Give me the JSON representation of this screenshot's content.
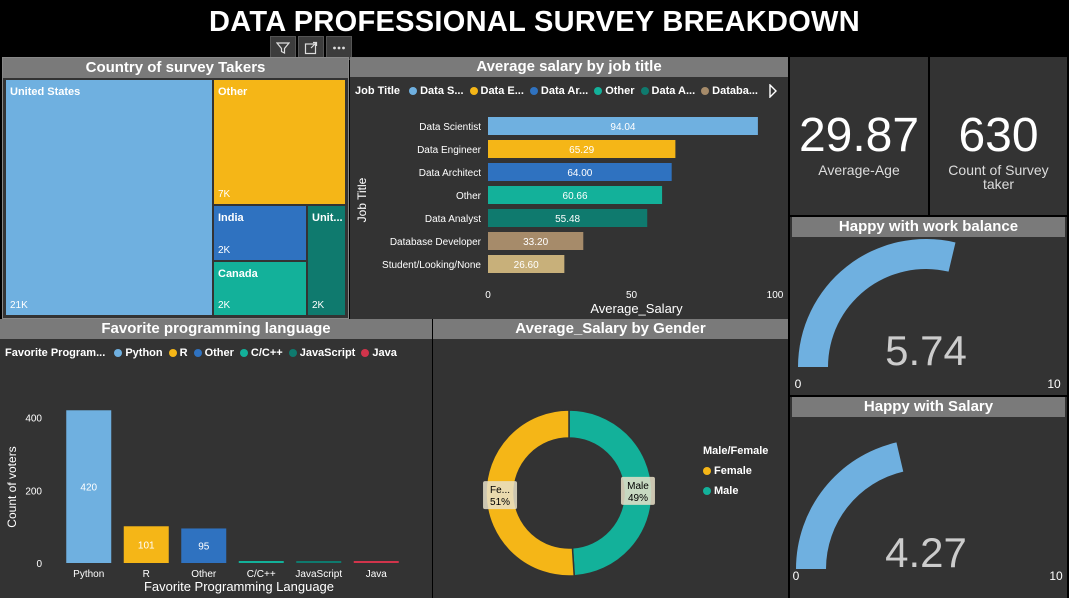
{
  "header": {
    "title": "DATA PROFESSIONAL SURVEY BREAKDOWN"
  },
  "toolbar": {
    "filter_icon": "filter-icon",
    "focus_icon": "focus-mode-icon",
    "more_icon": "more-options-icon"
  },
  "country": {
    "title": "Country of survey Takers",
    "tiles": [
      {
        "name": "United States",
        "value": "21K",
        "color": "#6fb0e0"
      },
      {
        "name": "Other",
        "value": "7K",
        "color": "#f5b617"
      },
      {
        "name": "India",
        "value": "2K",
        "color": "#2f72c0"
      },
      {
        "name": "Canada",
        "value": "2K",
        "color": "#13b19a"
      },
      {
        "name": "Unit...",
        "value": "2K",
        "color": "#0f7a6e"
      }
    ]
  },
  "salary_job": {
    "title": "Average salary by job title",
    "legend_title": "Job Title",
    "legend": [
      {
        "label": "Data S...",
        "color": "#6fb0e0"
      },
      {
        "label": "Data E...",
        "color": "#f5b617"
      },
      {
        "label": "Data Ar...",
        "color": "#2f72c0"
      },
      {
        "label": "Other",
        "color": "#13b19a"
      },
      {
        "label": "Data A...",
        "color": "#0f7a6e"
      },
      {
        "label": "Databa...",
        "color": "#a68b6a"
      }
    ],
    "chart_data": {
      "type": "bar",
      "orientation": "horizontal",
      "categories": [
        "Data Scientist",
        "Data Engineer",
        "Data Architect",
        "Other",
        "Data Analyst",
        "Database Developer",
        "Student/Looking/None"
      ],
      "values": [
        94.04,
        65.29,
        64.0,
        60.66,
        55.48,
        33.2,
        26.6
      ],
      "labels": [
        "94.04",
        "65.29",
        "64.00",
        "60.66",
        "55.48",
        "33.20",
        "26.60"
      ],
      "colors": [
        "#6fb0e0",
        "#f5b617",
        "#2f72c0",
        "#13b19a",
        "#0f7a6e",
        "#a68b6a",
        "#c8b07a"
      ],
      "xlabel": "Average_Salary",
      "ylabel": "Job Title",
      "xlim": [
        0,
        100
      ],
      "xticks": [
        "0",
        "50",
        "100"
      ]
    }
  },
  "kpi": {
    "age_value": "29.87",
    "age_label": "Average-Age",
    "count_value": "630",
    "count_label": "Count of Survey taker"
  },
  "gauge_work": {
    "title": "Happy with work balance",
    "value": "5.74",
    "min": "0",
    "max": "10",
    "fraction": 0.574,
    "color": "#6fb0e0"
  },
  "gauge_salary": {
    "title": "Happy with Salary",
    "value": "4.27",
    "min": "0",
    "max": "10",
    "fraction": 0.427,
    "color": "#6fb0e0"
  },
  "language": {
    "title": "Favorite programming language",
    "legend_title": "Favorite Program...",
    "legend": [
      {
        "label": "Python",
        "color": "#6fb0e0"
      },
      {
        "label": "R",
        "color": "#f5b617"
      },
      {
        "label": "Other",
        "color": "#2f72c0"
      },
      {
        "label": "C/C++",
        "color": "#13b19a"
      },
      {
        "label": "JavaScript",
        "color": "#0f7a6e"
      },
      {
        "label": "Java",
        "color": "#d1344b"
      }
    ],
    "chart_data": {
      "type": "bar",
      "categories": [
        "Python",
        "R",
        "Other",
        "C/C++",
        "JavaScript",
        "Java"
      ],
      "values": [
        420,
        101,
        95,
        0,
        0,
        0
      ],
      "labels": [
        "420",
        "101",
        "95",
        "",
        "",
        ""
      ],
      "colors": [
        "#6fb0e0",
        "#f5b617",
        "#2f72c0",
        "#13b19a",
        "#0f7a6e",
        "#d1344b"
      ],
      "xlabel": "Favorite Programming Language",
      "ylabel": "Count of voters",
      "ylim": [
        0,
        440
      ],
      "yticks": [
        "0",
        "200",
        "400"
      ]
    }
  },
  "gender": {
    "title": "Average_Salary by Gender",
    "legend_title": "Male/Female",
    "legend": [
      {
        "label": "Female",
        "color": "#f5b617"
      },
      {
        "label": "Male",
        "color": "#13b19a"
      }
    ],
    "chart_data": {
      "type": "pie",
      "donut": true,
      "categories": [
        "Female",
        "Male"
      ],
      "values": [
        51,
        49
      ],
      "data_labels": [
        {
          "name": "Fe...",
          "pct": "51%"
        },
        {
          "name": "Male",
          "pct": "49%"
        }
      ],
      "colors": [
        "#f5b617",
        "#13b19a"
      ]
    }
  }
}
